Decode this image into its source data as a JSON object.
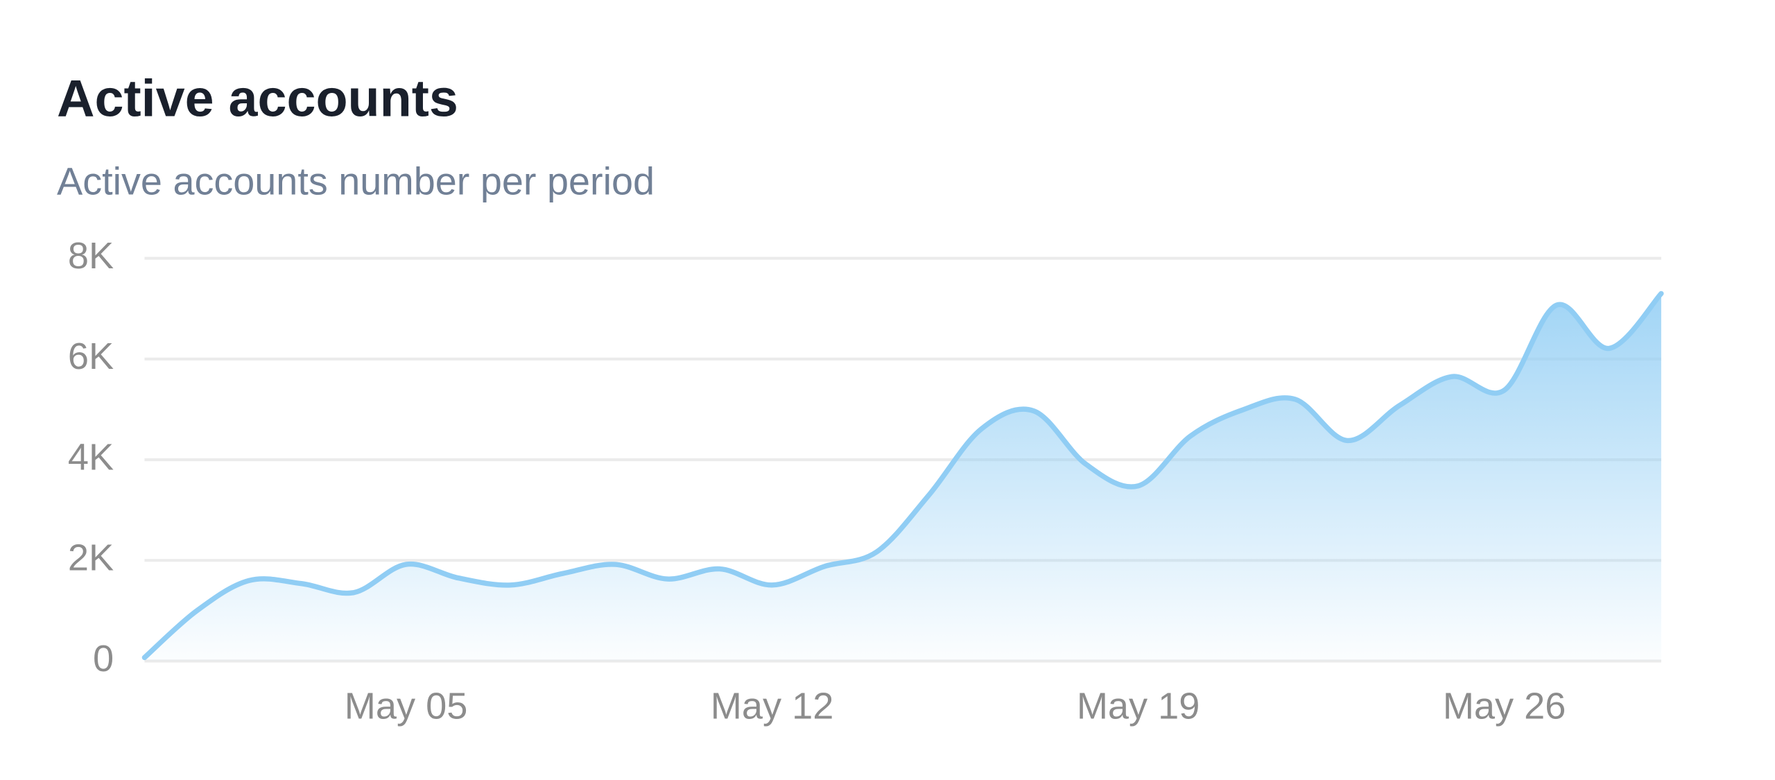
{
  "chart_data": {
    "type": "line",
    "title": "Active accounts",
    "subtitle": "Active accounts number per period",
    "categories": [
      null,
      null,
      null,
      null,
      null,
      "May 05",
      null,
      null,
      null,
      null,
      null,
      null,
      "May 12",
      null,
      null,
      null,
      null,
      null,
      null,
      "May 19",
      null,
      null,
      null,
      null,
      null,
      null,
      "May 26",
      null,
      null,
      null
    ],
    "series": [
      {
        "name": "Active accounts",
        "color": "#90cdf4",
        "values": [
          70,
          1000,
          1600,
          1540,
          1360,
          1920,
          1650,
          1510,
          1740,
          1920,
          1630,
          1830,
          1510,
          1880,
          2170,
          3300,
          4610,
          4970,
          3910,
          3480,
          4470,
          4990,
          5200,
          4380,
          5080,
          5650,
          5380,
          7070,
          6210,
          7300
        ]
      }
    ],
    "ylim": [
      0,
      8000
    ],
    "yticks": [
      0,
      {
        "value": 2000,
        "label": "2K"
      },
      {
        "value": 4000,
        "label": "4K"
      },
      {
        "value": 6000,
        "label": "6K"
      },
      {
        "value": 8000,
        "label": "8K"
      }
    ],
    "grid": true
  }
}
